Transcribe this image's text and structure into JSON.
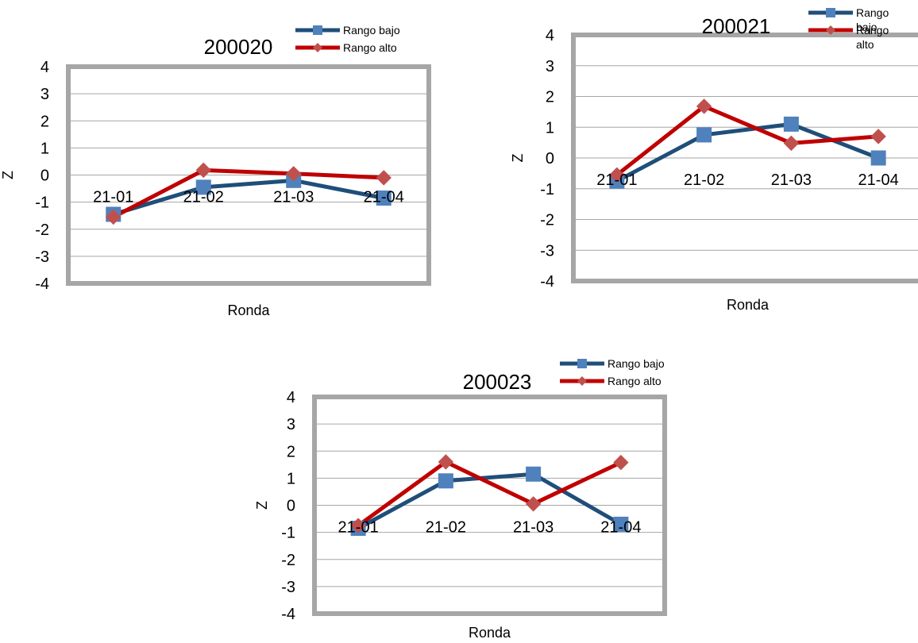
{
  "charts": [
    {
      "chart_data": {
        "type": "line",
        "title": "200020",
        "xlabel": "Ronda",
        "ylabel": "Z",
        "ylim": [
          -4,
          4
        ],
        "yticks": [
          "4",
          "3",
          "2",
          "1",
          "0",
          "-1",
          "-2",
          "-3",
          "-4"
        ],
        "categories": [
          "21-01",
          "21-02",
          "21-03",
          "21-04"
        ],
        "series": [
          {
            "name": "Rango bajo",
            "values": [
              -1.45,
              -0.45,
              -0.2,
              -0.85
            ],
            "color": "#1f4e79",
            "marker": "square",
            "marker_color": "#4f81bd"
          },
          {
            "name": "Rango alto",
            "values": [
              -1.55,
              0.18,
              0.05,
              -0.1
            ],
            "color": "#c00000",
            "marker": "diamond",
            "marker_color": "#c0504d"
          }
        ],
        "legend_position": "top-right",
        "grid": true
      }
    },
    {
      "chart_data": {
        "type": "line",
        "title": "200021",
        "xlabel": "Ronda",
        "ylabel": "Z",
        "ylim": [
          -4,
          4
        ],
        "yticks": [
          "4",
          "3",
          "2",
          "1",
          "0",
          "-1",
          "-2",
          "-3",
          "-4"
        ],
        "categories": [
          "21-01",
          "21-02",
          "21-03",
          "21-04"
        ],
        "series": [
          {
            "name": "Rango bajo",
            "values": [
              -0.75,
              0.75,
              1.1,
              0.0
            ],
            "color": "#1f4e79",
            "marker": "square",
            "marker_color": "#4f81bd"
          },
          {
            "name": "Rango alto",
            "values": [
              -0.55,
              1.68,
              0.48,
              0.7
            ],
            "color": "#c00000",
            "marker": "diamond",
            "marker_color": "#c0504d"
          }
        ],
        "legend_position": "top-right",
        "grid": true
      }
    },
    {
      "chart_data": {
        "type": "line",
        "title": "200023",
        "xlabel": "Ronda",
        "ylabel": "Z",
        "ylim": [
          -4,
          4
        ],
        "yticks": [
          "4",
          "3",
          "2",
          "1",
          "0",
          "-1",
          "-2",
          "-3",
          "-4"
        ],
        "categories": [
          "21-01",
          "21-02",
          "21-03",
          "21-04"
        ],
        "series": [
          {
            "name": "Rango bajo",
            "values": [
              -0.85,
              0.9,
              1.15,
              -0.7
            ],
            "color": "#1f4e79",
            "marker": "square",
            "marker_color": "#4f81bd"
          },
          {
            "name": "Rango alto",
            "values": [
              -0.75,
              1.6,
              0.05,
              1.58
            ],
            "color": "#c00000",
            "marker": "diamond",
            "marker_color": "#c0504d"
          }
        ],
        "legend_position": "top-right",
        "grid": true
      }
    }
  ],
  "colors": {
    "frame": "#a6a6a6",
    "gridline": "#a6a6a6",
    "text": "#000000"
  }
}
